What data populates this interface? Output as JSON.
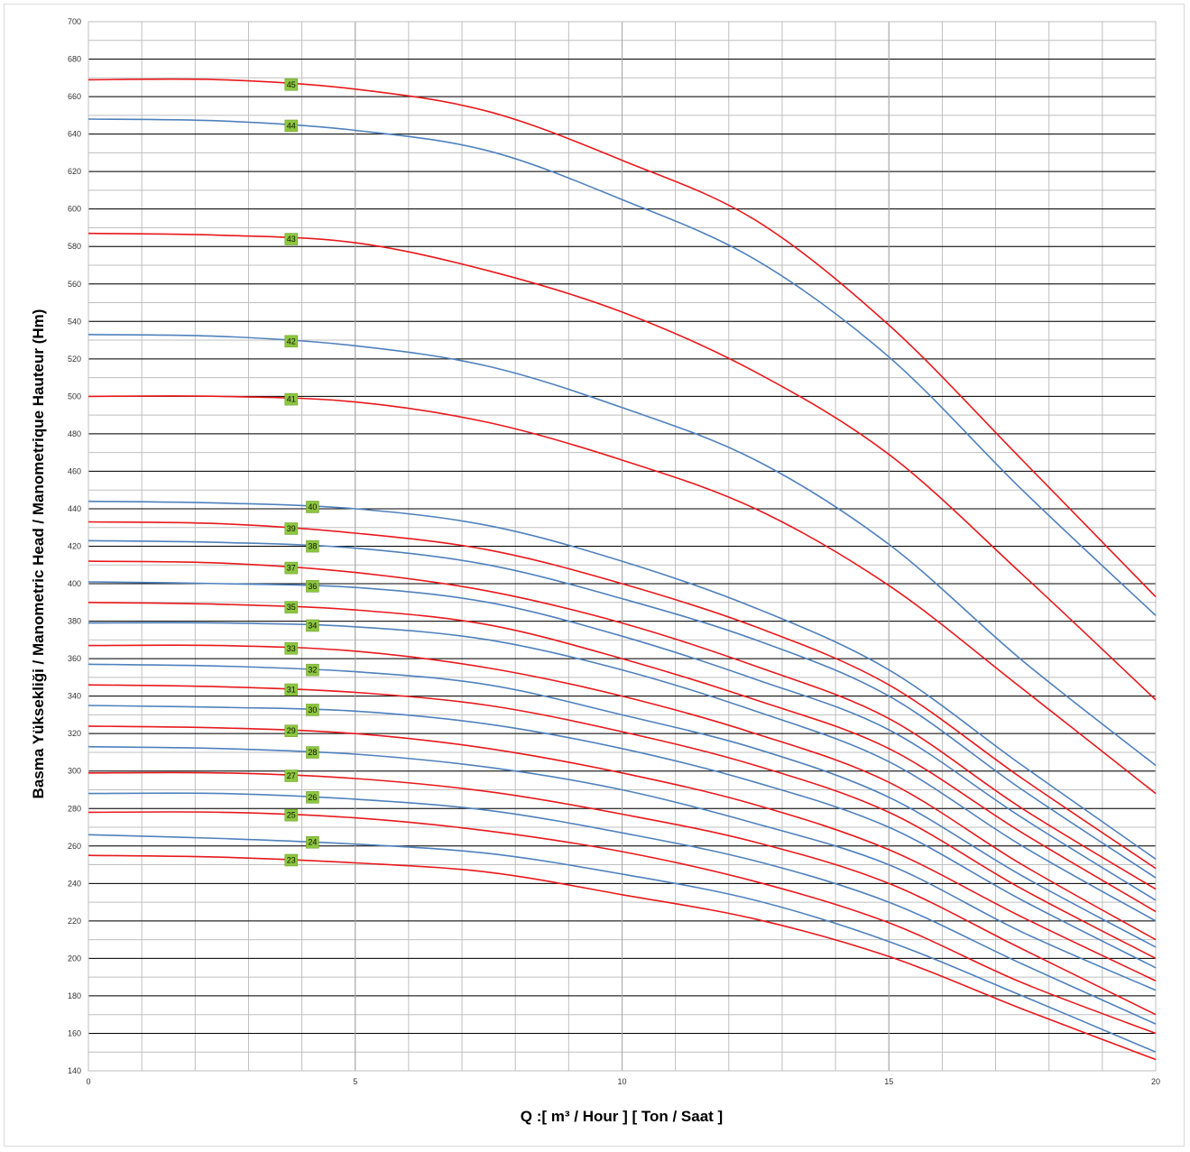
{
  "chart_data": {
    "type": "line",
    "title": "",
    "xlabel": "Q :[ m³ / Hour ] [ Ton / Saat ]",
    "ylabel": "Basma Yüksekliği / Manometric Head / Manometrique Hauteur (Hm)",
    "xlim": [
      0,
      20
    ],
    "ylim": [
      140,
      700
    ],
    "x_ticks": [
      "0",
      "5",
      "10",
      "15",
      "20"
    ],
    "y_ticks": [
      "140",
      "160",
      "180",
      "200",
      "220",
      "240",
      "260",
      "280",
      "300",
      "320",
      "340",
      "360",
      "380",
      "400",
      "420",
      "440",
      "460",
      "480",
      "500",
      "520",
      "540",
      "560",
      "580",
      "600",
      "620",
      "640",
      "660",
      "680",
      "700"
    ],
    "grid": true,
    "legend": "none",
    "colors": {
      "red": "#e8191c",
      "blue": "#4f81bd",
      "tag": "#8cc63f",
      "major_grid": "#000000",
      "minor_grid": "#bfbfbf"
    },
    "x": [
      0,
      2.5,
      5,
      7.5,
      10,
      12.5,
      15,
      17.5,
      20
    ],
    "series": [
      {
        "name": "45",
        "color": "red",
        "label_x": 3.8,
        "values": [
          669,
          669,
          664,
          652,
          626,
          594,
          538,
          466,
          393
        ]
      },
      {
        "name": "44",
        "color": "blue",
        "label_x": 3.8,
        "values": [
          648,
          647,
          642,
          631,
          605,
          573,
          521,
          450,
          383
        ]
      },
      {
        "name": "43",
        "color": "red",
        "label_x": 3.8,
        "values": [
          587,
          586,
          582,
          567,
          545,
          513,
          469,
          405,
          338
        ]
      },
      {
        "name": "42",
        "color": "blue",
        "label_x": 3.8,
        "values": [
          533,
          532,
          527,
          516,
          494,
          466,
          421,
          359,
          303
        ]
      },
      {
        "name": "41",
        "color": "red",
        "label_x": 3.8,
        "values": [
          500,
          500,
          497,
          486,
          466,
          440,
          399,
          344,
          288
        ]
      },
      {
        "name": "40",
        "color": "blue",
        "label_x": 4.2,
        "values": [
          444,
          443,
          440,
          431,
          412,
          387,
          354,
          303,
          253
        ]
      },
      {
        "name": "39",
        "color": "red",
        "label_x": 3.8,
        "values": [
          433,
          432,
          427,
          418,
          400,
          377,
          346,
          296,
          248
        ]
      },
      {
        "name": "38",
        "color": "blue",
        "label_x": 4.2,
        "values": [
          423,
          422,
          419,
          410,
          392,
          370,
          340,
          290,
          243
        ]
      },
      {
        "name": "37",
        "color": "red",
        "label_x": 3.8,
        "values": [
          412,
          411,
          406,
          396,
          379,
          356,
          328,
          280,
          237
        ]
      },
      {
        "name": "36",
        "color": "blue",
        "label_x": 4.2,
        "values": [
          401,
          400,
          398,
          390,
          372,
          349,
          322,
          275,
          231
        ]
      },
      {
        "name": "35",
        "color": "red",
        "label_x": 3.8,
        "values": [
          390,
          389,
          386,
          378,
          360,
          338,
          312,
          267,
          225
        ]
      },
      {
        "name": "34",
        "color": "blue",
        "label_x": 4.2,
        "values": [
          379,
          379,
          377,
          370,
          354,
          332,
          305,
          260,
          220
        ]
      },
      {
        "name": "33",
        "color": "red",
        "label_x": 3.8,
        "values": [
          367,
          367,
          364,
          355,
          340,
          320,
          294,
          250,
          210
        ]
      },
      {
        "name": "32",
        "color": "blue",
        "label_x": 4.2,
        "values": [
          357,
          356,
          353,
          346,
          330,
          312,
          286,
          244,
          206
        ]
      },
      {
        "name": "31",
        "color": "red",
        "label_x": 3.8,
        "values": [
          346,
          345,
          342,
          335,
          321,
          303,
          278,
          237,
          200
        ]
      },
      {
        "name": "30",
        "color": "blue",
        "label_x": 4.2,
        "values": [
          335,
          334,
          332,
          325,
          312,
          294,
          270,
          231,
          195
        ]
      },
      {
        "name": "29",
        "color": "red",
        "label_x": 3.8,
        "values": [
          324,
          323,
          320,
          312,
          299,
          282,
          258,
          222,
          188
        ]
      },
      {
        "name": "28",
        "color": "blue",
        "label_x": 4.2,
        "values": [
          313,
          312,
          309,
          302,
          290,
          272,
          250,
          214,
          183
        ]
      },
      {
        "name": "27",
        "color": "red",
        "label_x": 3.8,
        "values": [
          299,
          299,
          296,
          289,
          277,
          262,
          240,
          205,
          170
        ]
      },
      {
        "name": "26",
        "color": "blue",
        "label_x": 4.2,
        "values": [
          288,
          288,
          285,
          279,
          267,
          252,
          230,
          197,
          165
        ]
      },
      {
        "name": "25",
        "color": "red",
        "label_x": 3.8,
        "values": [
          278,
          278,
          275,
          268,
          257,
          241,
          219,
          187,
          160
        ]
      },
      {
        "name": "24",
        "color": "blue",
        "label_x": 4.2,
        "values": [
          266,
          264,
          261,
          256,
          245,
          231,
          209,
          180,
          150
        ]
      },
      {
        "name": "23",
        "color": "red",
        "label_x": 3.8,
        "values": [
          255,
          254,
          251,
          246,
          234,
          221,
          201,
          173,
          146
        ]
      }
    ]
  }
}
